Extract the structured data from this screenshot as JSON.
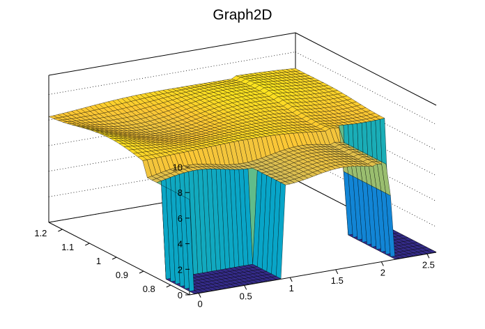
{
  "chart_data": {
    "type": "surface3d",
    "title": "Graph2D",
    "xlabel": "",
    "ylabel": "",
    "zlabel": "",
    "x_ticks": [
      "0",
      "0.5",
      "1",
      "1.5",
      "2",
      "2.5"
    ],
    "y_ticks": [
      "0.8",
      "0.9",
      "1",
      "1.1",
      "1.2"
    ],
    "z_ticks": [
      "0",
      "2",
      "4",
      "6",
      "8",
      "10"
    ],
    "x_range": [
      -0.1,
      2.6
    ],
    "y_range": [
      0.73,
      1.25
    ],
    "z_range": [
      0,
      11.5
    ],
    "palette": [
      "#352a87",
      "#0f5cdd",
      "#1481d6",
      "#06a4ca",
      "#2eb7a4",
      "#87bf77",
      "#d1bb59",
      "#fec832",
      "#f9fb0e"
    ],
    "grid": true,
    "surface_description_note": ""
  }
}
